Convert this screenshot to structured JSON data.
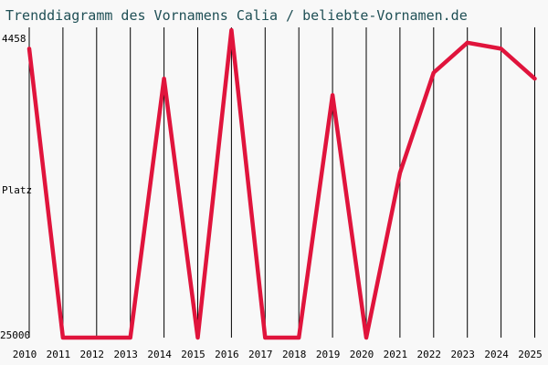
{
  "chart_data": {
    "type": "line",
    "title": "Trenddiagramm des Vornamens Calia / beliebte-Vornamen.de",
    "xlabel": "",
    "ylabel": "Platz",
    "y_top_label": "4458",
    "y_bottom_label": "25000",
    "ylim": [
      25000,
      4458
    ],
    "x": [
      "2010",
      "2011",
      "2012",
      "2013",
      "2014",
      "2015",
      "2016",
      "2017",
      "2018",
      "2019",
      "2020",
      "2021",
      "2022",
      "2023",
      "2024",
      "2025"
    ],
    "series": [
      {
        "name": "",
        "color": "#e0143c",
        "values": [
          5700,
          25000,
          25000,
          25000,
          7700,
          25000,
          4458,
          25000,
          25000,
          8800,
          25000,
          14000,
          7300,
          5300,
          5700,
          7700
        ]
      }
    ],
    "grid": true,
    "legend": "none"
  }
}
